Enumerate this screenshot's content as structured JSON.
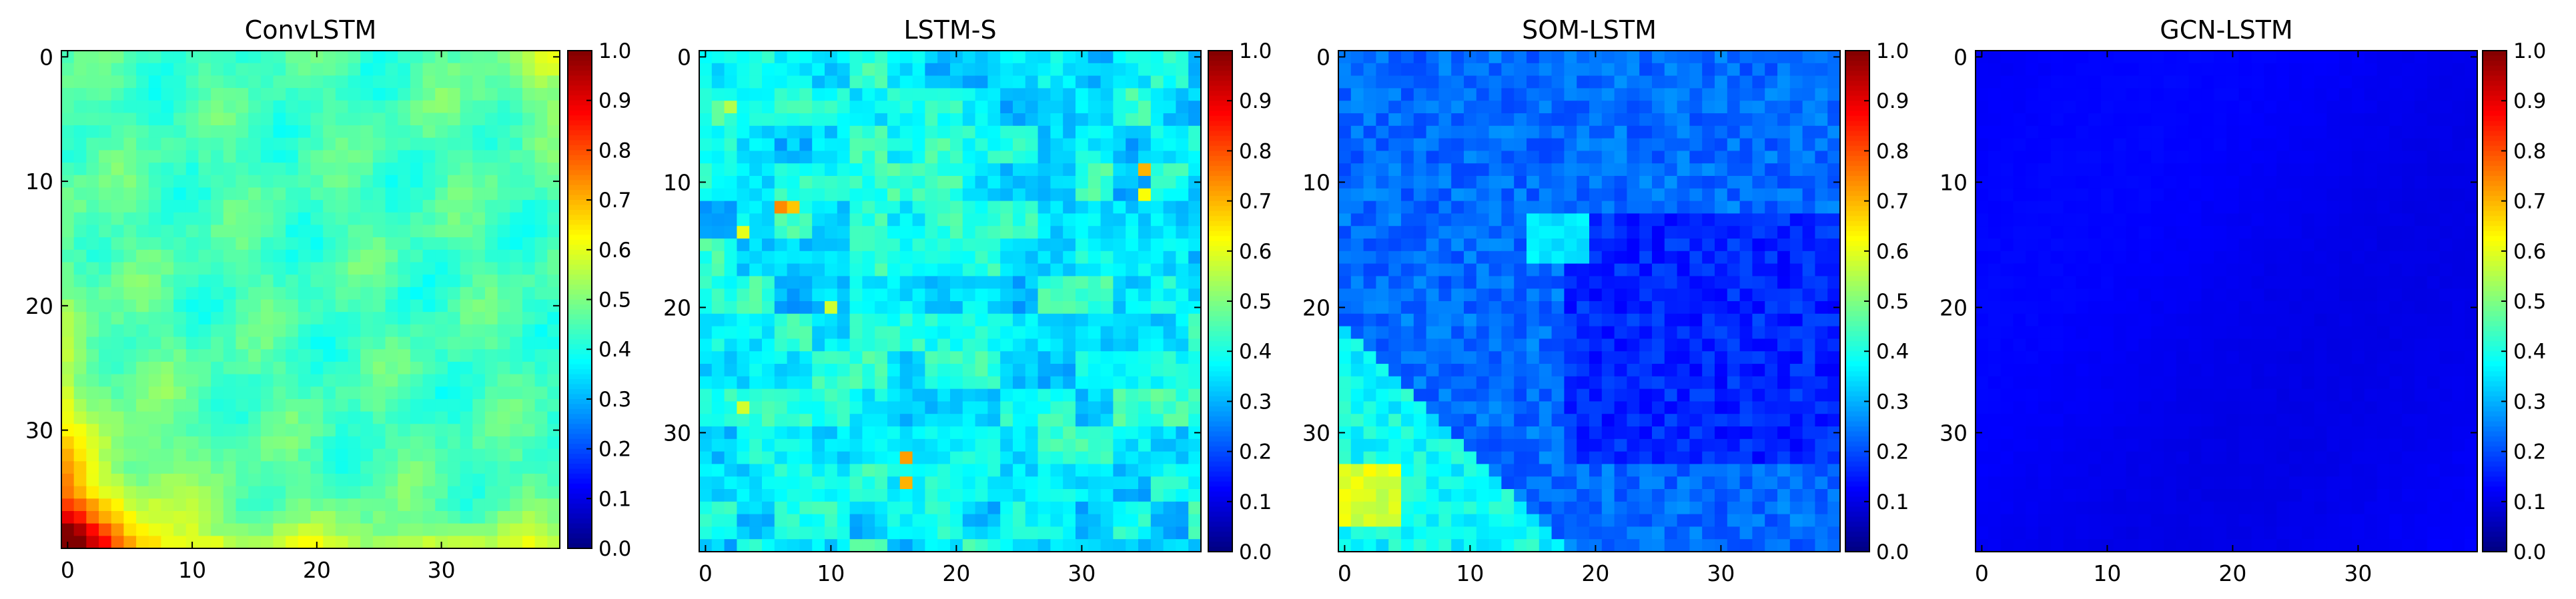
{
  "figure": {
    "background": "#ffffff",
    "colormap": "jet"
  },
  "chart_data": [
    {
      "type": "heatmap",
      "title": "ConvLSTM",
      "grid_size": [
        40,
        40
      ],
      "xlim": [
        0,
        39
      ],
      "ylim": [
        0,
        39
      ],
      "x_ticks": [
        0,
        10,
        20,
        30
      ],
      "y_ticks": [
        0,
        10,
        20,
        30
      ],
      "colorbar_range": [
        0.0,
        1.0
      ],
      "colorbar_ticks": [
        "0.0",
        "0.1",
        "0.2",
        "0.3",
        "0.4",
        "0.5",
        "0.6",
        "0.7",
        "0.8",
        "0.9",
        "1.0"
      ],
      "grid": false,
      "value_description": "mostly 0.40-0.50 cyan-green; high values 0.75-0.85 in bottom-left corner; ~0.6 along left edge and bottom edge; ~0.6 at top-right corner",
      "typical_value": 0.45
    },
    {
      "type": "heatmap",
      "title": "LSTM-S",
      "grid_size": [
        40,
        40
      ],
      "xlim": [
        0,
        39
      ],
      "ylim": [
        0,
        39
      ],
      "x_ticks": [
        0,
        10,
        20,
        30
      ],
      "y_ticks": [
        0,
        10,
        20,
        30
      ],
      "colorbar_range": [
        0.0,
        1.0
      ],
      "colorbar_ticks": [
        "0.0",
        "0.1",
        "0.2",
        "0.3",
        "0.4",
        "0.5",
        "0.6",
        "0.7",
        "0.8",
        "0.9",
        "1.0"
      ],
      "grid": false,
      "value_description": "blocky mosaic 0.25-0.45; scattered 0.6-0.75 hot cells near (6,12), (16,32), (35,9)",
      "typical_value": 0.33
    },
    {
      "type": "heatmap",
      "title": "SOM-LSTM",
      "grid_size": [
        40,
        40
      ],
      "xlim": [
        0,
        39
      ],
      "ylim": [
        0,
        39
      ],
      "x_ticks": [
        0,
        10,
        20,
        30
      ],
      "y_ticks": [
        0,
        10,
        20,
        30
      ],
      "colorbar_range": [
        0.0,
        1.0
      ],
      "colorbar_ticks": [
        "0.0",
        "0.1",
        "0.2",
        "0.3",
        "0.4",
        "0.5",
        "0.6",
        "0.7",
        "0.8",
        "0.9",
        "1.0"
      ],
      "grid": false,
      "value_description": "mostly 0.18-0.28 blue; right-center region ~0.15; bottom-left triangle 0.35-0.45 with ~0.6 near (2,35)",
      "typical_value": 0.22
    },
    {
      "type": "heatmap",
      "title": "GCN-LSTM",
      "grid_size": [
        40,
        40
      ],
      "xlim": [
        0,
        39
      ],
      "ylim": [
        0,
        39
      ],
      "x_ticks": [
        0,
        10,
        20,
        30
      ],
      "y_ticks": [
        0,
        10,
        20,
        30
      ],
      "colorbar_range": [
        0.0,
        1.0
      ],
      "colorbar_ticks": [
        "0.0",
        "0.1",
        "0.2",
        "0.3",
        "0.4",
        "0.5",
        "0.6",
        "0.7",
        "0.8",
        "0.9",
        "1.0"
      ],
      "grid": false,
      "value_description": "nearly uniform ~0.10-0.14 deep blue",
      "typical_value": 0.12
    }
  ]
}
